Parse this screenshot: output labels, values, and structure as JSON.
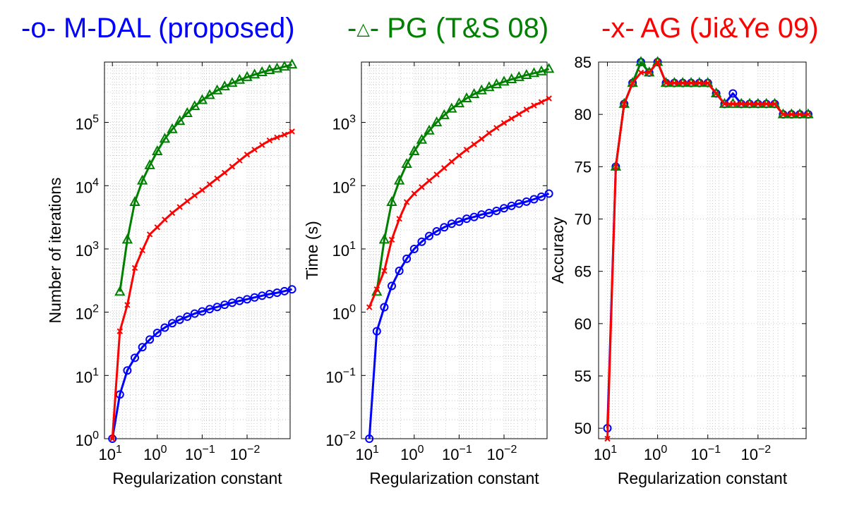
{
  "legend": {
    "mdal": {
      "label": "-o- M-DAL (proposed)",
      "color": "#0000ff"
    },
    "pg": {
      "label": "PG (T&S 08)",
      "prefix": "-",
      "suffix": "-",
      "marker": "△",
      "color": "#008000"
    },
    "ag": {
      "label": "-x- AG (Ji&Ye 09)",
      "color": "#ff0000"
    }
  },
  "chart_data": [
    {
      "type": "line",
      "xscale": "log",
      "xreversed": true,
      "xlim": [
        15,
        0.0011
      ],
      "yscale": "log",
      "ylim": [
        1,
        900000
      ],
      "xlabel": "Regularization constant",
      "ylabel": "Number of iterations",
      "xticks": [
        {
          "value": 10,
          "base": "10",
          "exp": "1"
        },
        {
          "value": 1,
          "base": "10",
          "exp": "0"
        },
        {
          "value": 0.1,
          "base": "10",
          "exp": "−1"
        },
        {
          "value": 0.01,
          "base": "10",
          "exp": "−2"
        }
      ],
      "yticks": [
        {
          "value": 1,
          "base": "10",
          "exp": "0"
        },
        {
          "value": 10,
          "base": "10",
          "exp": "1"
        },
        {
          "value": 100,
          "base": "10",
          "exp": "2"
        },
        {
          "value": 1000,
          "base": "10",
          "exp": "3"
        },
        {
          "value": 10000,
          "base": "10",
          "exp": "4"
        },
        {
          "value": 100000,
          "base": "10",
          "exp": "5"
        }
      ],
      "grid": true,
      "x": [
        10,
        6.81,
        4.64,
        3.16,
        2.15,
        1.47,
        1,
        0.681,
        0.464,
        0.316,
        0.215,
        0.147,
        0.1,
        0.0681,
        0.0464,
        0.0316,
        0.0215,
        0.0147,
        0.01,
        0.00681,
        0.00464,
        0.00316,
        0.00215,
        0.00147,
        0.001
      ],
      "series": [
        {
          "name": "M-DAL (proposed)",
          "marker": "o",
          "color": "#0000ff",
          "values": [
            1,
            5,
            12,
            19,
            28,
            37,
            47,
            57,
            67,
            76,
            85,
            95,
            103,
            112,
            121,
            131,
            141,
            151,
            160,
            171,
            182,
            193,
            203,
            215,
            230
          ]
        },
        {
          "name": "PG (T&S 08)",
          "marker": "^",
          "color": "#008000",
          "values": [
            null,
            210,
            1400,
            5500,
            12000,
            21000,
            35000,
            55000,
            78000,
            105000,
            140000,
            180000,
            225000,
            270000,
            320000,
            370000,
            420000,
            470000,
            520000,
            570000,
            620000,
            670000,
            710000,
            760000,
            820000
          ]
        },
        {
          "name": "AG (Ji&Ye 09)",
          "marker": "x",
          "color": "#ff0000",
          "values": [
            1,
            50,
            130,
            500,
            950,
            1700,
            2200,
            2900,
            3700,
            4600,
            5700,
            7000,
            8500,
            10500,
            13000,
            16000,
            20000,
            25000,
            31000,
            37000,
            44000,
            52000,
            58000,
            64000,
            72000
          ]
        }
      ]
    },
    {
      "type": "line",
      "xscale": "log",
      "xreversed": true,
      "xlim": [
        15,
        0.0011
      ],
      "yscale": "log",
      "ylim": [
        0.01,
        9000
      ],
      "xlabel": "Regularization constant",
      "ylabel": "Time (s)",
      "xticks": [
        {
          "value": 10,
          "base": "10",
          "exp": "1"
        },
        {
          "value": 1,
          "base": "10",
          "exp": "0"
        },
        {
          "value": 0.1,
          "base": "10",
          "exp": "−1"
        },
        {
          "value": 0.01,
          "base": "10",
          "exp": "−2"
        }
      ],
      "yticks": [
        {
          "value": 0.01,
          "base": "10",
          "exp": "−2"
        },
        {
          "value": 0.1,
          "base": "10",
          "exp": "−1"
        },
        {
          "value": 1,
          "base": "10",
          "exp": "0"
        },
        {
          "value": 10,
          "base": "10",
          "exp": "1"
        },
        {
          "value": 100,
          "base": "10",
          "exp": "2"
        },
        {
          "value": 1000,
          "base": "10",
          "exp": "3"
        }
      ],
      "grid": true,
      "x": [
        10,
        6.81,
        4.64,
        3.16,
        2.15,
        1.47,
        1,
        0.681,
        0.464,
        0.316,
        0.215,
        0.147,
        0.1,
        0.0681,
        0.0464,
        0.0316,
        0.0215,
        0.0147,
        0.01,
        0.00681,
        0.00464,
        0.00316,
        0.00215,
        0.00147,
        0.001
      ],
      "series": [
        {
          "name": "M-DAL (proposed)",
          "marker": "o",
          "color": "#0000ff",
          "values": [
            0.01,
            0.5,
            1.2,
            2.6,
            4.5,
            7,
            10,
            13,
            16,
            19,
            22,
            25,
            27,
            30,
            32,
            35,
            37,
            40,
            44,
            48,
            52,
            56,
            61,
            67,
            75
          ]
        },
        {
          "name": "PG (T&S 08)",
          "marker": "^",
          "color": "#008000",
          "values": [
            null,
            2.1,
            14,
            55,
            120,
            220,
            350,
            530,
            740,
            1000,
            1300,
            1650,
            2000,
            2400,
            2800,
            3200,
            3600,
            4000,
            4400,
            4800,
            5200,
            5600,
            6000,
            6400,
            7000
          ]
        },
        {
          "name": "AG (Ji&Ye 09)",
          "marker": "x",
          "color": "#ff0000",
          "values": [
            1.2,
            2.3,
            4.5,
            14,
            30,
            55,
            75,
            95,
            120,
            150,
            190,
            240,
            300,
            370,
            450,
            550,
            680,
            820,
            980,
            1150,
            1350,
            1600,
            1850,
            2100,
            2400
          ]
        }
      ]
    },
    {
      "type": "line",
      "xscale": "log",
      "xreversed": true,
      "xlim": [
        15,
        0.0011
      ],
      "yscale": "linear",
      "ylim": [
        49,
        85
      ],
      "xlabel": "Regularization constant",
      "ylabel": "Accuracy",
      "xticks": [
        {
          "value": 10,
          "base": "10",
          "exp": "1"
        },
        {
          "value": 1,
          "base": "10",
          "exp": "0"
        },
        {
          "value": 0.1,
          "base": "10",
          "exp": "−1"
        },
        {
          "value": 0.01,
          "base": "10",
          "exp": "−2"
        }
      ],
      "yticks": [
        {
          "value": 50,
          "label": "50"
        },
        {
          "value": 55,
          "label": "55"
        },
        {
          "value": 60,
          "label": "60"
        },
        {
          "value": 65,
          "label": "65"
        },
        {
          "value": 70,
          "label": "70"
        },
        {
          "value": 75,
          "label": "75"
        },
        {
          "value": 80,
          "label": "80"
        },
        {
          "value": 85,
          "label": "85"
        }
      ],
      "grid": true,
      "x": [
        10,
        6.81,
        4.64,
        3.16,
        2.15,
        1.47,
        1,
        0.681,
        0.464,
        0.316,
        0.215,
        0.147,
        0.1,
        0.0681,
        0.0464,
        0.0316,
        0.0215,
        0.0147,
        0.01,
        0.00681,
        0.00464,
        0.00316,
        0.00215,
        0.00147,
        0.001
      ],
      "series": [
        {
          "name": "M-DAL (proposed)",
          "marker": "o",
          "color": "#0000ff",
          "values": [
            50,
            75,
            81,
            83,
            85,
            84,
            85,
            83,
            83,
            83,
            83,
            83,
            83,
            82,
            81,
            82,
            81,
            81,
            81,
            81,
            81,
            80,
            80,
            80,
            80
          ]
        },
        {
          "name": "PG (T&S 08)",
          "marker": "^",
          "color": "#008000",
          "values": [
            null,
            75,
            81,
            83,
            85,
            84,
            85,
            83,
            83,
            83,
            83,
            83,
            83,
            82,
            81,
            81,
            81,
            81,
            81,
            81,
            81,
            80,
            80,
            80,
            80
          ]
        },
        {
          "name": "AG (Ji&Ye 09)",
          "marker": "x",
          "color": "#ff0000",
          "values": [
            49,
            75,
            81,
            83,
            84,
            84,
            85,
            83,
            83,
            83,
            83,
            83,
            83,
            82,
            81,
            81,
            81,
            81,
            81,
            81,
            81,
            80,
            80,
            80,
            80
          ]
        }
      ]
    }
  ]
}
